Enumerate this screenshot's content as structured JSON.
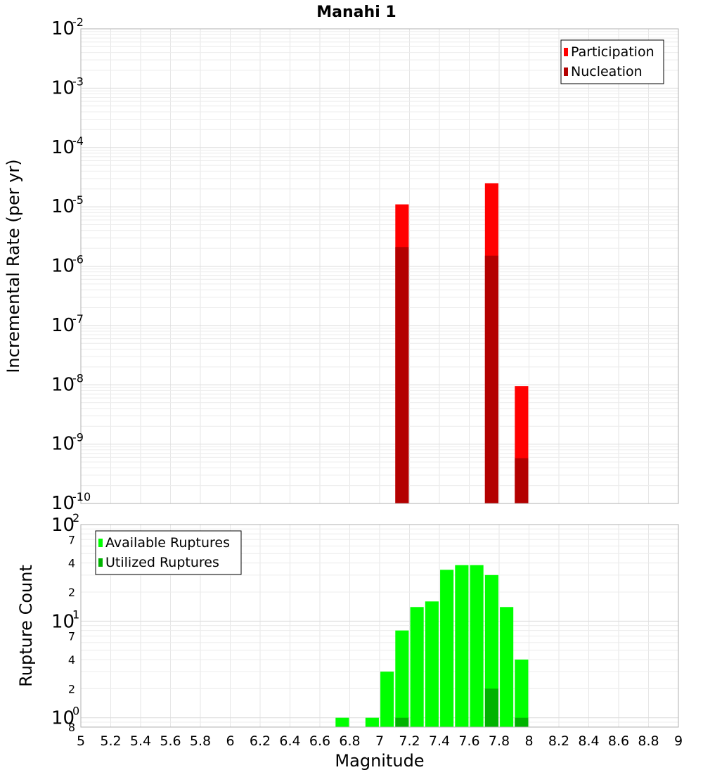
{
  "chart_data": [
    {
      "type": "bar",
      "title": "Manahi 1",
      "xlabel": "",
      "ylabel": "Incremental Rate (per yr)",
      "xlim": [
        5,
        9
      ],
      "ylim": [
        1e-10,
        0.01
      ],
      "y_scale": "log",
      "bar_width": 0.09,
      "grid": true,
      "legend_placement": "top-right",
      "y_tick_labels": [
        {
          "value": 0.01,
          "base": "10",
          "exp": "-2"
        },
        {
          "value": 0.001,
          "base": "10",
          "exp": "-3"
        },
        {
          "value": 0.0001,
          "base": "10",
          "exp": "-4"
        },
        {
          "value": 1e-05,
          "base": "10",
          "exp": "-5"
        },
        {
          "value": 1e-06,
          "base": "10",
          "exp": "-6"
        },
        {
          "value": 1e-07,
          "base": "10",
          "exp": "-7"
        },
        {
          "value": 1e-08,
          "base": "10",
          "exp": "-8"
        },
        {
          "value": 1e-09,
          "base": "10",
          "exp": "-9"
        },
        {
          "value": 1e-10,
          "base": "10",
          "exp": "-10"
        }
      ],
      "series": [
        {
          "name": "Participation",
          "color": "#ff0000",
          "x": [
            7.15,
            7.75,
            7.95
          ],
          "values": [
            1.1e-05,
            2.5e-05,
            9.5e-09
          ]
        },
        {
          "name": "Nucleation",
          "color": "#b30000",
          "x": [
            7.15,
            7.75,
            7.95
          ],
          "values": [
            2.1e-06,
            1.5e-06,
            5.8e-10
          ]
        }
      ]
    },
    {
      "type": "bar",
      "title": "",
      "xlabel": "Magnitude",
      "ylabel": "Rupture Count",
      "xlim": [
        5,
        9
      ],
      "ylim": [
        0.8,
        100
      ],
      "y_scale": "log",
      "bar_width": 0.09,
      "grid": true,
      "legend_placement": "top-left",
      "x_ticks": [
        "5",
        "5.2",
        "5.4",
        "5.6",
        "5.8",
        "6",
        "6.2",
        "6.4",
        "6.6",
        "6.8",
        "7",
        "7.2",
        "7.4",
        "7.6",
        "7.8",
        "8",
        "8.2",
        "8.4",
        "8.6",
        "8.8",
        "9"
      ],
      "y_major_tick_labels": [
        {
          "value": 100,
          "base": "10",
          "exp": "2"
        },
        {
          "value": 10,
          "base": "10",
          "exp": "1"
        },
        {
          "value": 1,
          "base": "10",
          "exp": "0"
        }
      ],
      "y_minor_tick_labels": [
        {
          "value": 70,
          "label": "7"
        },
        {
          "value": 40,
          "label": "4"
        },
        {
          "value": 20,
          "label": "2"
        },
        {
          "value": 7,
          "label": "7"
        },
        {
          "value": 4,
          "label": "4"
        },
        {
          "value": 2,
          "label": "2"
        },
        {
          "value": 0.8,
          "label": "8"
        }
      ],
      "series": [
        {
          "name": "Available Ruptures",
          "color": "#00ff00",
          "x": [
            6.75,
            6.95,
            7.05,
            7.15,
            7.25,
            7.35,
            7.45,
            7.55,
            7.65,
            7.75,
            7.85,
            7.95
          ],
          "values": [
            1,
            1,
            3,
            8,
            14,
            16,
            34,
            38,
            38,
            30,
            14,
            4
          ]
        },
        {
          "name": "Utilized Ruptures",
          "color": "#00b300",
          "x": [
            7.15,
            7.75,
            7.95
          ],
          "values": [
            1,
            2,
            1
          ]
        }
      ]
    }
  ]
}
